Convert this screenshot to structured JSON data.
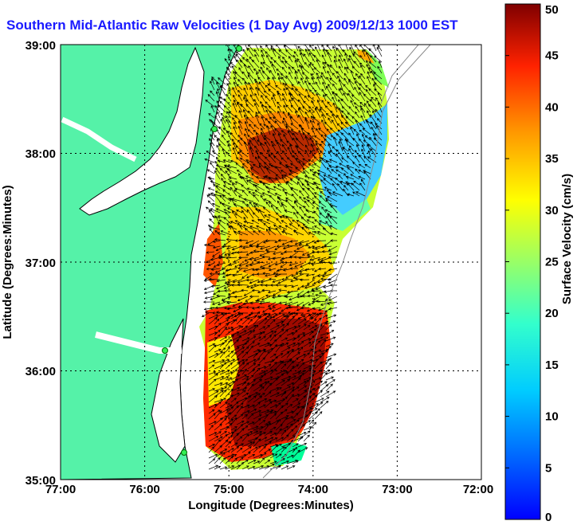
{
  "title": "Southern Mid-Atlantic Raw Velocities (1 Day Avg) 2009/12/13 1000 EST",
  "xlabel": "Longitude (Degrees:Minutes)",
  "ylabel": "Latitude (Degrees:Minutes)",
  "colorbar_label": "Surface Velocity (cm/s)",
  "x_ticks": [
    "77:00",
    "76:00",
    "75:00",
    "74:00",
    "73:00",
    "72:00"
  ],
  "y_ticks": [
    "39:00",
    "38:00",
    "37:00",
    "36:00",
    "35:00"
  ],
  "cbar_ticks": [
    "50",
    "45",
    "40",
    "35",
    "30",
    "25",
    "20",
    "15",
    "10",
    "5",
    "0"
  ],
  "colors": {
    "land": "#55f2a8",
    "coast": "#000000",
    "grid": "#000000",
    "title": "#1a1aff"
  },
  "chart_data": {
    "type": "heatmap",
    "title": "Southern Mid-Atlantic Raw Velocities (1 Day Avg) 2009/12/13 1000 EST",
    "xlabel": "Longitude (Degrees:Minutes)",
    "ylabel": "Latitude (Degrees:Minutes)",
    "xlim": [
      -77,
      -72
    ],
    "ylim": [
      35,
      39
    ],
    "colorbar": {
      "label": "Surface Velocity (cm/s)",
      "range": [
        0,
        50
      ]
    },
    "grid": true
  }
}
